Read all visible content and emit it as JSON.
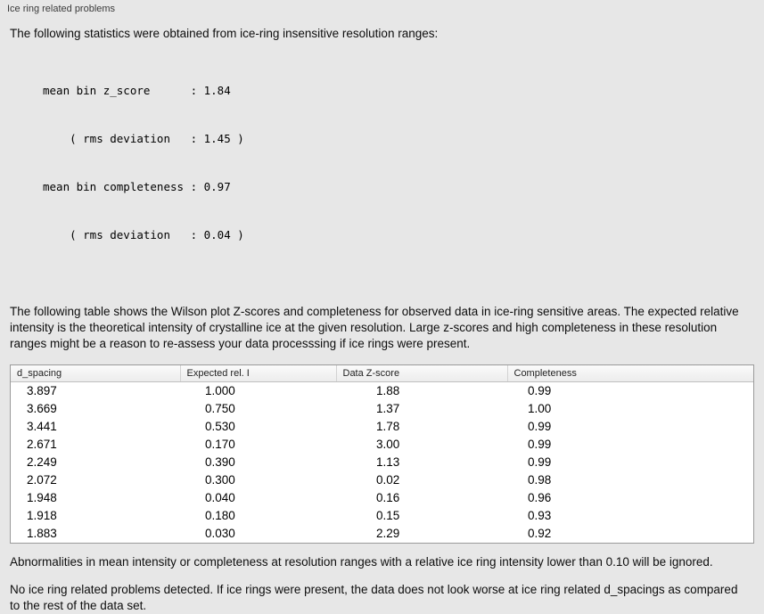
{
  "panel": {
    "title": "Ice ring related problems"
  },
  "stats": {
    "intro": "The following statistics were obtained from ice-ring insensitive resolution ranges:",
    "lines": [
      "mean bin z_score      : 1.84",
      "    ( rms deviation   : 1.45 )",
      "mean bin completeness : 0.97",
      "    ( rms deviation   : 0.04 )"
    ]
  },
  "table_intro": "The following table shows the Wilson plot Z-scores and completeness for observed data in ice-ring sensitive areas. The expected relative intensity is the theoretical intensity of crystalline ice at the given resolution. Large z-scores and high completeness in these resolution ranges might be a reason to re-assess your data processsing if ice rings were present.",
  "table": {
    "columns": [
      "d_spacing",
      "Expected rel. I",
      "Data Z-score",
      "Completeness"
    ],
    "rows": [
      [
        "3.897",
        "1.000",
        "1.88",
        "0.99"
      ],
      [
        "3.669",
        "0.750",
        "1.37",
        "1.00"
      ],
      [
        "3.441",
        "0.530",
        "1.78",
        "0.99"
      ],
      [
        "2.671",
        "0.170",
        "3.00",
        "0.99"
      ],
      [
        "2.249",
        "0.390",
        "1.13",
        "0.99"
      ],
      [
        "2.072",
        "0.300",
        "0.02",
        "0.98"
      ],
      [
        "1.948",
        "0.040",
        "0.16",
        "0.96"
      ],
      [
        "1.918",
        "0.180",
        "0.15",
        "0.93"
      ],
      [
        "1.883",
        "0.030",
        "2.29",
        "0.92"
      ]
    ]
  },
  "notes": {
    "ignore_threshold": "Abnormalities in mean intensity or completeness at resolution ranges with a relative ice ring intensity lower than 0.10 will be ignored.",
    "conclusion": "No ice ring related problems detected. If ice rings were present, the data does not look worse at ice ring related d_spacings as compared to the rest of the data set."
  },
  "colors": {
    "background": "#e7e7e7",
    "table_background": "#ffffff",
    "table_border": "#9a9a9a"
  }
}
